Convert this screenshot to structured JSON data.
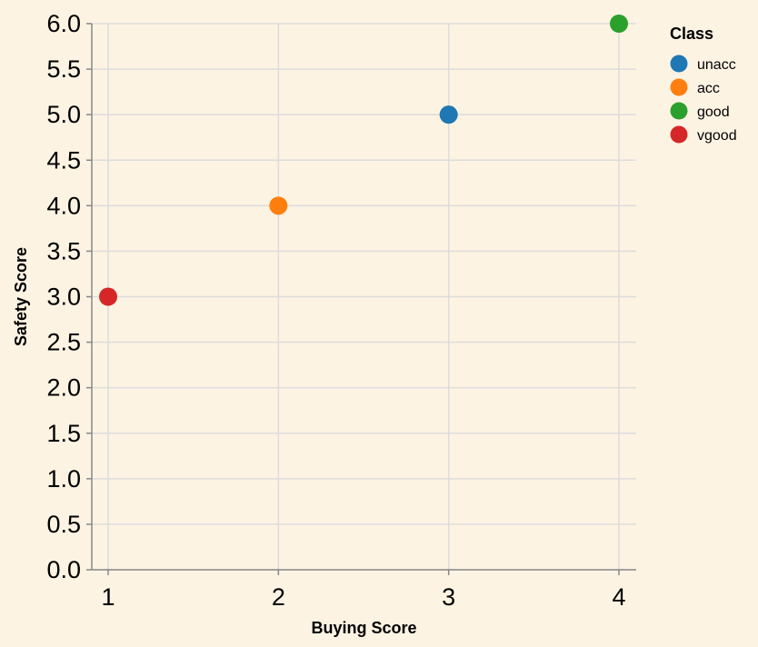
{
  "chart_data": {
    "type": "scatter",
    "xlabel": "Buying Score",
    "ylabel": "Safety Score",
    "xlim": [
      1,
      4
    ],
    "ylim": [
      0,
      6
    ],
    "x_ticks": [
      "1",
      "2",
      "3",
      "4"
    ],
    "y_ticks": [
      "0.0",
      "0.5",
      "1.0",
      "1.5",
      "2.0",
      "2.5",
      "3.0",
      "3.5",
      "4.0",
      "4.5",
      "5.0",
      "5.5",
      "6.0"
    ],
    "grid": true,
    "legend": {
      "title": "Class",
      "placement": "right",
      "entries": [
        {
          "label": "unacc",
          "color": "#1f77b4"
        },
        {
          "label": "acc",
          "color": "#ff7f0e"
        },
        {
          "label": "good",
          "color": "#2ca02c"
        },
        {
          "label": "vgood",
          "color": "#d62728"
        }
      ]
    },
    "series": [
      {
        "name": "unacc",
        "color": "#1f77b4",
        "points": [
          {
            "x": 3,
            "y": 5.0
          }
        ]
      },
      {
        "name": "acc",
        "color": "#ff7f0e",
        "points": [
          {
            "x": 2,
            "y": 4.0
          }
        ]
      },
      {
        "name": "good",
        "color": "#2ca02c",
        "points": [
          {
            "x": 4,
            "y": 6.0
          }
        ]
      },
      {
        "name": "vgood",
        "color": "#d62728",
        "points": [
          {
            "x": 1,
            "y": 3.0
          }
        ]
      }
    ]
  }
}
